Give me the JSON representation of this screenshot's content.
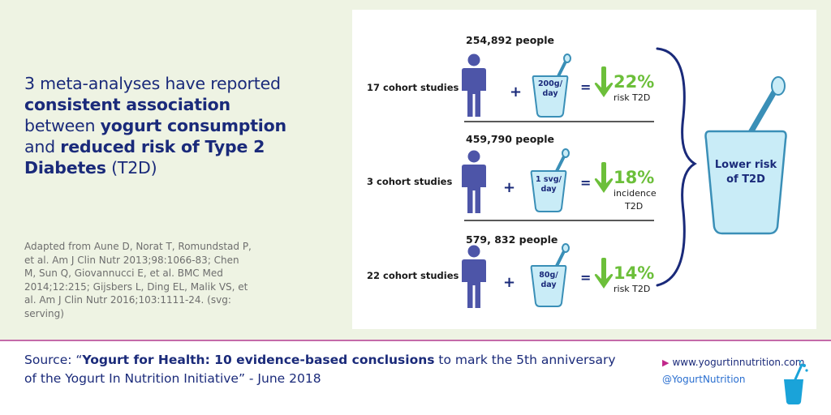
{
  "headline": {
    "line1": "3 meta-analyses have reported",
    "line2_bold": "consistent association",
    "line3_plain": "between ",
    "line3_bold": "yogurt consumption",
    "line4_plain": "and ",
    "line4_bold": "reduced risk of Type 2",
    "line5_bold": "Diabetes",
    "line5_plain": " (T2D)"
  },
  "citation": "Adapted from Aune D, Norat T, Romundstad P, et al. Am J Clin Nutr 2013;98:1066-83; Chen M, Sun Q, Giovannucci E, et al. BMC Med 2014;12:215; Gijsbers L, Ding EL, Malik VS, et al. Am J Clin Nutr 2016;103:1111-24. (svg: serving)",
  "studies": [
    {
      "people": "254,892 people",
      "studies_label": "17 cohort  studies",
      "dose_line1": "200g/",
      "dose_line2": "day",
      "percent": "22%",
      "outcome_line1": "risk T2D",
      "outcome_line2": ""
    },
    {
      "people": "459,790 people",
      "studies_label": "3 cohort studies",
      "dose_line1": "1 svg/",
      "dose_line2": "day",
      "percent": "18%",
      "outcome_line1": "incidence",
      "outcome_line2": "T2D"
    },
    {
      "people": "579, 832 people",
      "studies_label": "22 cohort studies",
      "dose_line1": "80g/",
      "dose_line2": "day",
      "percent": "14%",
      "outcome_line1": "risk T2D",
      "outcome_line2": ""
    }
  ],
  "symbols": {
    "plus": "+",
    "equals": "="
  },
  "summary": {
    "line1": "Lower risk",
    "line2": "of T2D"
  },
  "footer": {
    "source_prefix": "Source: “",
    "source_bold": "Yogurt for Health: 10 evidence-based conclusions",
    "source_rest": " to mark the 5th anniversary of the Yogurt In Nutrition Initiative” - June 2018",
    "website": "www.yogurtinnutrition.com",
    "twitter": "@YogurtNutrition"
  },
  "colors": {
    "navy": "#1a2a7a",
    "green": "#6cbf3a",
    "cup_fill": "#c9ecf7",
    "cup_stroke": "#3a8fb7",
    "person": "#4d55a8",
    "panel_bg": "#eef3e3",
    "divider": "#c46aa9"
  },
  "icons": [
    "person-icon",
    "yogurt-cup-icon",
    "down-arrow-icon",
    "curly-brace-icon",
    "large-yogurt-cup-icon",
    "play-arrow-icon",
    "logo-cup-icon"
  ]
}
